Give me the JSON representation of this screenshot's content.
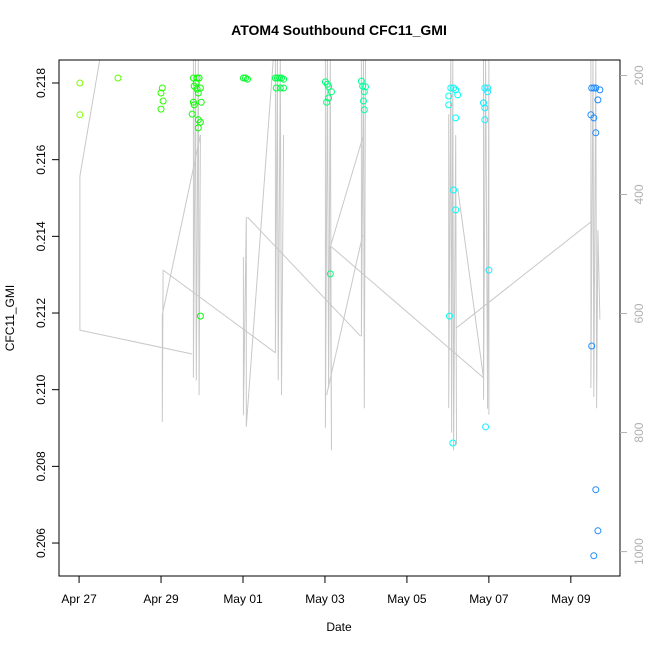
{
  "chart_data": {
    "type": "scatter",
    "title": "ATOM4 Southbound CFC11_GMI",
    "xlabel": "Date",
    "ylabel": "CFC11_GMI",
    "x_units": "days since Apr 27",
    "xlim": [
      -0.49,
      13.2
    ],
    "ylim": [
      0.20514,
      0.2186
    ],
    "y2lim": [
      1041,
      174
    ],
    "x_ticks": [
      {
        "value": 0,
        "label": "Apr 27"
      },
      {
        "value": 2,
        "label": "Apr 29"
      },
      {
        "value": 4,
        "label": "May 01"
      },
      {
        "value": 6,
        "label": "May 03"
      },
      {
        "value": 8,
        "label": "May 05"
      },
      {
        "value": 10,
        "label": "May 07"
      },
      {
        "value": 12,
        "label": "May 09"
      }
    ],
    "y_ticks": [
      {
        "value": 0.206,
        "label": "0.206"
      },
      {
        "value": 0.208,
        "label": "0.208"
      },
      {
        "value": 0.21,
        "label": "0.210"
      },
      {
        "value": 0.212,
        "label": "0.212"
      },
      {
        "value": 0.214,
        "label": "0.214"
      },
      {
        "value": 0.216,
        "label": "0.216"
      },
      {
        "value": 0.218,
        "label": "0.218"
      }
    ],
    "y2_ticks": [
      {
        "value": 200,
        "label": "200"
      },
      {
        "value": 400,
        "label": "400"
      },
      {
        "value": 600,
        "label": "600"
      },
      {
        "value": 800,
        "label": "800"
      },
      {
        "value": 1000,
        "label": "1000"
      }
    ],
    "grid": false,
    "colors": {
      "axis": "#000000",
      "secondary_axis": "#b0b0b0",
      "secondary_line": "#c8c8c8"
    },
    "points": [
      [
        0.02,
        0.218
      ],
      [
        0.02,
        0.21717
      ],
      [
        0.95,
        0.21813
      ],
      [
        2.03,
        0.21787
      ],
      [
        2.0,
        0.21774
      ],
      [
        2.05,
        0.21753
      ],
      [
        2.0,
        0.21732
      ],
      [
        2.79,
        0.21813
      ],
      [
        2.88,
        0.21813
      ],
      [
        2.93,
        0.21813
      ],
      [
        2.86,
        0.218
      ],
      [
        2.81,
        0.21792
      ],
      [
        2.88,
        0.21784
      ],
      [
        2.96,
        0.21787
      ],
      [
        2.91,
        0.21774
      ],
      [
        2.79,
        0.2175
      ],
      [
        2.98,
        0.2175
      ],
      [
        2.81,
        0.21743
      ],
      [
        2.76,
        0.21719
      ],
      [
        2.91,
        0.21704
      ],
      [
        2.96,
        0.21698
      ],
      [
        2.91,
        0.21683
      ],
      [
        2.96,
        0.21192
      ],
      [
        4.01,
        0.21813
      ],
      [
        4.06,
        0.21813
      ],
      [
        4.11,
        0.2181
      ],
      [
        4.79,
        0.21813
      ],
      [
        4.84,
        0.21813
      ],
      [
        4.89,
        0.21813
      ],
      [
        4.94,
        0.21813
      ],
      [
        4.99,
        0.2181
      ],
      [
        4.81,
        0.21787
      ],
      [
        4.91,
        0.21787
      ],
      [
        4.99,
        0.21787
      ],
      [
        6.01,
        0.21803
      ],
      [
        6.06,
        0.21797
      ],
      [
        6.09,
        0.2179
      ],
      [
        6.16,
        0.21777
      ],
      [
        6.09,
        0.21761
      ],
      [
        6.04,
        0.2175
      ],
      [
        6.13,
        0.21302
      ],
      [
        6.89,
        0.21805
      ],
      [
        6.92,
        0.21792
      ],
      [
        6.99,
        0.2179
      ],
      [
        6.96,
        0.21777
      ],
      [
        6.94,
        0.21753
      ],
      [
        6.96,
        0.2173
      ],
      [
        9.07,
        0.21787
      ],
      [
        9.14,
        0.21787
      ],
      [
        9.19,
        0.21782
      ],
      [
        9.02,
        0.21766
      ],
      [
        9.24,
        0.21769
      ],
      [
        9.02,
        0.21743
      ],
      [
        9.19,
        0.21709
      ],
      [
        9.14,
        0.21521
      ],
      [
        9.19,
        0.21469
      ],
      [
        9.04,
        0.21192
      ],
      [
        9.12,
        0.20861
      ],
      [
        9.9,
        0.21787
      ],
      [
        9.97,
        0.21787
      ],
      [
        9.97,
        0.21777
      ],
      [
        9.87,
        0.21748
      ],
      [
        9.9,
        0.21735
      ],
      [
        9.9,
        0.21704
      ],
      [
        10.0,
        0.21312
      ],
      [
        9.92,
        0.20903
      ],
      [
        12.51,
        0.21787
      ],
      [
        12.56,
        0.21787
      ],
      [
        12.61,
        0.21787
      ],
      [
        12.71,
        0.21782
      ],
      [
        12.66,
        0.21756
      ],
      [
        12.49,
        0.21717
      ],
      [
        12.56,
        0.21709
      ],
      [
        12.61,
        0.2167
      ],
      [
        12.51,
        0.21114
      ],
      [
        12.61,
        0.20739
      ],
      [
        12.66,
        0.20632
      ],
      [
        12.56,
        0.20567
      ]
    ],
    "secondary_series": [
      [
        [
          0.51,
          171
        ],
        [
          0.02,
          369
        ],
        [
          0.02,
          628
        ],
        [
          2.76,
          668
        ]
      ],
      [
        [
          2.79,
          171
        ],
        [
          2.79,
          708
        ],
        [
          2.84,
          171
        ],
        [
          2.86,
          712
        ],
        [
          2.91,
          171
        ],
        [
          2.93,
          737
        ],
        [
          2.96,
          300
        ]
      ],
      [
        [
          2.05,
          527
        ],
        [
          2.03,
          782
        ],
        [
          2.03,
          602
        ],
        [
          2.96,
          300
        ]
      ],
      [
        [
          2.05,
          527
        ],
        [
          4.79,
          666
        ]
      ],
      [
        [
          4.01,
          505
        ],
        [
          4.01,
          771
        ],
        [
          4.08,
          438
        ],
        [
          4.08,
          790
        ],
        [
          4.74,
          172
        ]
      ],
      [
        [
          4.79,
          171
        ],
        [
          4.79,
          666
        ],
        [
          4.84,
          171
        ],
        [
          4.86,
          712
        ],
        [
          4.91,
          171
        ],
        [
          4.94,
          737
        ],
        [
          4.99,
          300
        ]
      ],
      [
        [
          4.11,
          438
        ],
        [
          6.87,
          638
        ]
      ],
      [
        [
          6.01,
          171
        ],
        [
          6.01,
          792
        ],
        [
          6.06,
          171
        ],
        [
          6.09,
          725
        ],
        [
          6.13,
          171
        ],
        [
          6.16,
          830
        ],
        [
          6.13,
          488
        ],
        [
          6.94,
          300
        ]
      ],
      [
        [
          6.04,
          737
        ],
        [
          6.92,
          468
        ]
      ],
      [
        [
          6.16,
          488
        ],
        [
          9.87,
          708
        ]
      ],
      [
        [
          6.89,
          171
        ],
        [
          6.89,
          638
        ],
        [
          6.94,
          171
        ],
        [
          6.96,
          759
        ],
        [
          6.99,
          171
        ]
      ],
      [
        [
          9.02,
          265
        ],
        [
          9.02,
          759
        ],
        [
          9.07,
          171
        ],
        [
          9.09,
          800
        ],
        [
          9.12,
          171
        ],
        [
          9.14,
          830
        ],
        [
          9.19,
          300
        ],
        [
          9.21,
          820
        ]
      ],
      [
        [
          9.24,
          389
        ],
        [
          9.87,
          708
        ]
      ],
      [
        [
          9.21,
          624
        ],
        [
          12.49,
          446
        ]
      ],
      [
        [
          9.87,
          171
        ],
        [
          9.87,
          745
        ],
        [
          9.92,
          171
        ],
        [
          9.97,
          760
        ],
        [
          10.0,
          171
        ],
        [
          10.0,
          770
        ]
      ],
      [
        [
          12.49,
          171
        ],
        [
          12.49,
          725
        ],
        [
          12.54,
          171
        ],
        [
          12.56,
          740
        ],
        [
          12.61,
          171
        ],
        [
          12.63,
          759
        ],
        [
          12.66,
          460
        ],
        [
          12.71,
          610
        ]
      ]
    ]
  }
}
